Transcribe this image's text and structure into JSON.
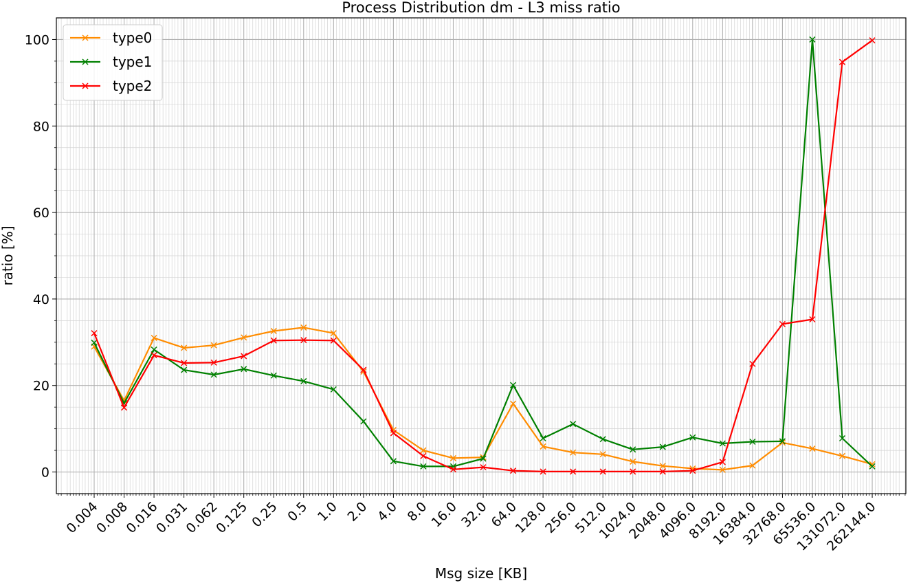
{
  "chart_data": {
    "type": "line",
    "title": "Process Distribution dm - L3 miss ratio",
    "xlabel": "Msg size [KB]",
    "ylabel": "ratio [%]",
    "categories": [
      "0.004",
      "0.008",
      "0.016",
      "0.031",
      "0.062",
      "0.125",
      "0.25",
      "0.5",
      "1.0",
      "2.0",
      "4.0",
      "8.0",
      "16.0",
      "32.0",
      "64.0",
      "128.0",
      "256.0",
      "512.0",
      "1024.0",
      "2048.0",
      "4096.0",
      "8192.0",
      "16384.0",
      "32768.0",
      "65536.0",
      "131072.0",
      "262144.0"
    ],
    "yticks": [
      0,
      20,
      40,
      60,
      80,
      100
    ],
    "ylim": [
      -5,
      105
    ],
    "grid": true,
    "minor_grid": true,
    "legend_position": "top-left",
    "series": [
      {
        "name": "type0",
        "color": "#ff8c00",
        "values": [
          29.0,
          16.5,
          31.0,
          28.7,
          29.3,
          31.1,
          32.6,
          33.4,
          32.1,
          23.2,
          9.7,
          5.0,
          3.2,
          3.4,
          15.8,
          5.9,
          4.5,
          4.1,
          2.4,
          1.4,
          0.8,
          0.5,
          1.5,
          6.8,
          5.4,
          3.7,
          1.8
        ]
      },
      {
        "name": "type1",
        "color": "#008000",
        "values": [
          29.9,
          15.9,
          28.3,
          23.6,
          22.5,
          23.8,
          22.3,
          21.0,
          19.1,
          11.7,
          2.5,
          1.3,
          1.3,
          3.1,
          20.1,
          7.8,
          11.1,
          7.6,
          5.2,
          5.8,
          8.0,
          6.6,
          7.0,
          7.1,
          100.0,
          7.8,
          1.3
        ]
      },
      {
        "name": "type2",
        "color": "#ff0000",
        "values": [
          32.1,
          14.9,
          27.0,
          25.2,
          25.3,
          26.8,
          30.4,
          30.5,
          30.4,
          23.6,
          9.0,
          3.7,
          0.6,
          1.1,
          0.3,
          0.1,
          0.1,
          0.1,
          0.1,
          0.1,
          0.3,
          2.3,
          25.0,
          34.2,
          35.3,
          94.8,
          99.8
        ]
      }
    ]
  }
}
